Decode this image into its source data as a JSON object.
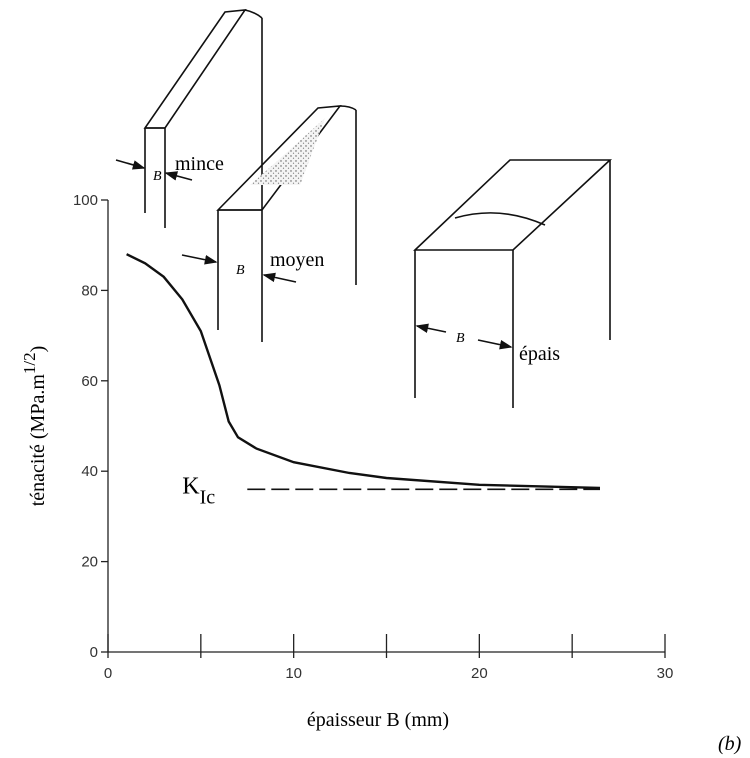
{
  "chart_data": {
    "type": "line",
    "x_label": "épaisseur B (mm)",
    "y_label": {
      "text": "ténacité (MPa.m",
      "superscript": "1/2",
      "suffix": ")"
    },
    "xlim": [
      0,
      30
    ],
    "ylim": [
      0,
      100
    ],
    "xticks": [
      0,
      10,
      20,
      30
    ],
    "xminorticks": [
      5,
      15,
      25
    ],
    "yticks": [
      0,
      20,
      40,
      60,
      80,
      100
    ],
    "series": [
      {
        "color": "#111111",
        "dashed": false,
        "x": [
          1,
          2,
          3,
          4,
          5,
          6,
          6.5,
          7,
          8,
          10,
          13,
          15,
          20,
          26.5
        ],
        "values": [
          88,
          86,
          83,
          78,
          71,
          59,
          51,
          47.5,
          45,
          42,
          39.6,
          38.5,
          37,
          36.3
        ]
      },
      {
        "color": "#111111",
        "dashed": true,
        "label": "K",
        "subscript": "Ic",
        "x": [
          7.5,
          26.5
        ],
        "values": [
          36,
          36
        ]
      }
    ],
    "specimens": [
      {
        "label": "mince",
        "dimension": "B"
      },
      {
        "label": "moyen",
        "dimension": "B"
      },
      {
        "label": "épais",
        "dimension": "B"
      }
    ],
    "panel_label": "(b)"
  }
}
